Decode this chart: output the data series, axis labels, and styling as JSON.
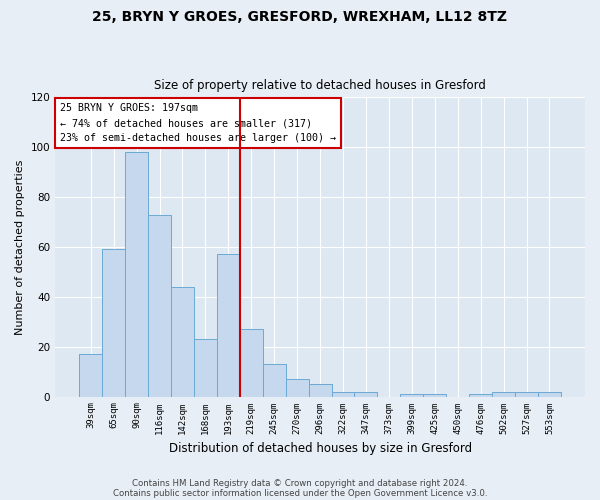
{
  "title1": "25, BRYN Y GROES, GRESFORD, WREXHAM, LL12 8TZ",
  "title2": "Size of property relative to detached houses in Gresford",
  "xlabel": "Distribution of detached houses by size in Gresford",
  "ylabel": "Number of detached properties",
  "categories": [
    "39sqm",
    "65sqm",
    "90sqm",
    "116sqm",
    "142sqm",
    "168sqm",
    "193sqm",
    "219sqm",
    "245sqm",
    "270sqm",
    "296sqm",
    "322sqm",
    "347sqm",
    "373sqm",
    "399sqm",
    "425sqm",
    "450sqm",
    "476sqm",
    "502sqm",
    "527sqm",
    "553sqm"
  ],
  "values": [
    17,
    59,
    98,
    73,
    44,
    23,
    57,
    27,
    13,
    7,
    5,
    2,
    2,
    0,
    1,
    1,
    0,
    1,
    2,
    2,
    2
  ],
  "bar_color": "#c5d8ed",
  "bar_edge_color": "#6aaad4",
  "vline_color": "#cc0000",
  "annotation_text": "25 BRYN Y GROES: 197sqm\n← 74% of detached houses are smaller (317)\n23% of semi-detached houses are larger (100) →",
  "annotation_box_color": "#ffffff",
  "annotation_box_edge": "#cc0000",
  "footnote1": "Contains HM Land Registry data © Crown copyright and database right 2024.",
  "footnote2": "Contains public sector information licensed under the Open Government Licence v3.0.",
  "ylim": [
    0,
    120
  ],
  "fig_bg": "#e8eef5",
  "ax_bg": "#dde8f2",
  "grid_color": "#ffffff"
}
